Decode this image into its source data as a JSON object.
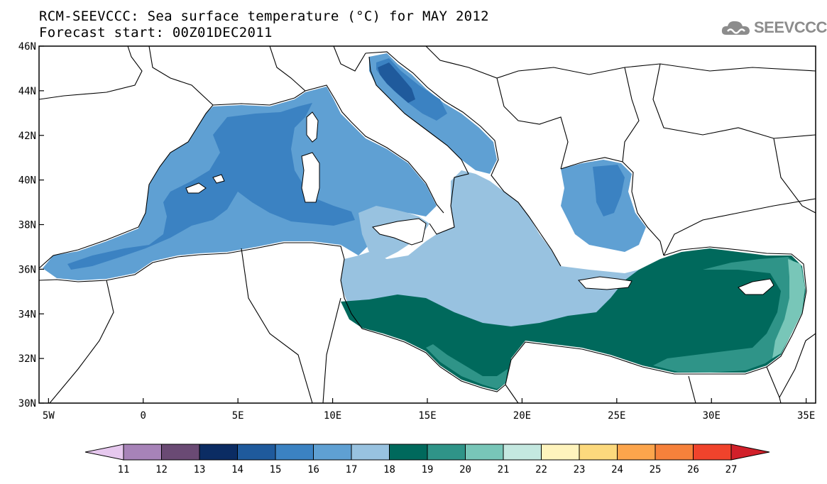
{
  "title": {
    "line1": "RCM-SEEVCCC: Sea surface temperature (°C) for MAY 2012",
    "line2": "Forecast start: 00Z01DEC2011"
  },
  "logo": {
    "text": "SEEVCCC",
    "icon": "cloud-icon"
  },
  "map": {
    "lat_labels": [
      "46N",
      "44N",
      "42N",
      "40N",
      "38N",
      "36N",
      "34N",
      "32N",
      "30N"
    ],
    "lon_labels": [
      "5W",
      "0",
      "5E",
      "10E",
      "15E",
      "20E",
      "25E",
      "30E",
      "35E"
    ],
    "lon_range": [
      -5.5,
      35.5
    ],
    "lat_range": [
      30,
      46
    ],
    "land_color": "#ffffff",
    "coastline_color": "#000000"
  },
  "colorbar": {
    "ticks": [
      "11",
      "12",
      "13",
      "14",
      "15",
      "16",
      "17",
      "18",
      "19",
      "20",
      "21",
      "22",
      "23",
      "24",
      "25",
      "26",
      "27"
    ],
    "colors": [
      "#d3a9dc",
      "#a783b8",
      "#6a4a74",
      "#0b2c63",
      "#1f5a9c",
      "#3b82c2",
      "#5fa0d3",
      "#98c2e0",
      "#00695c",
      "#2f9488",
      "#78c6b8",
      "#c4e8e0",
      "#fff4bd",
      "#fcd97d",
      "#fca54c",
      "#f6813b",
      "#f0432c",
      "#d1202a"
    ],
    "lower_extension_color": "#e6c8ee",
    "upper_extension_color": "#d1202a"
  }
}
